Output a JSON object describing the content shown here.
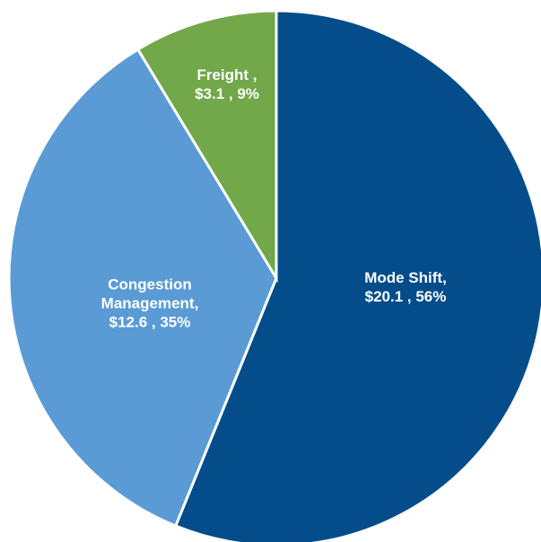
{
  "chart_data": {
    "type": "pie",
    "categories": [
      "Mode Shift,",
      "Congestion Management,",
      "Freight ,"
    ],
    "values": [
      20.1,
      12.6,
      3.1
    ],
    "value_labels": [
      "$20.1 , 56%",
      "$12.6 , 35%",
      "$3.1 , 9%"
    ],
    "colors": [
      "#044d8a",
      "#5b9bd5",
      "#72a74a"
    ]
  }
}
